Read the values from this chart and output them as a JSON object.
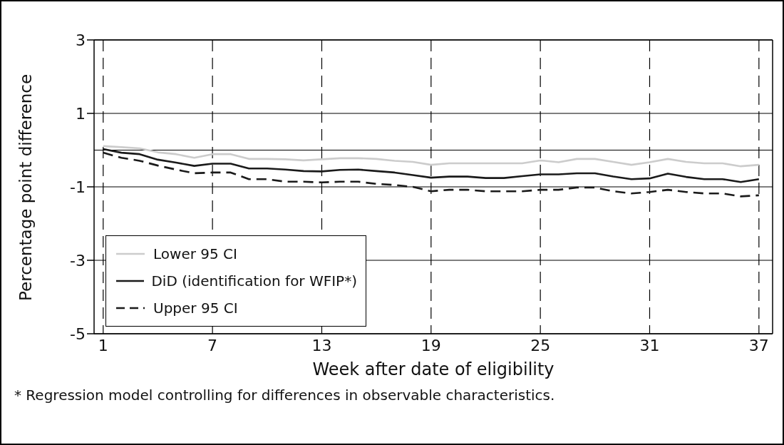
{
  "chart_data": {
    "type": "line",
    "xlabel": "Week after date of eligibility",
    "ylabel": "Percentage point difference",
    "annotations": [
      "* Regression model controlling for differences in observable characteristics."
    ],
    "x": [
      1,
      2,
      3,
      4,
      5,
      6,
      7,
      8,
      9,
      10,
      11,
      12,
      13,
      14,
      15,
      16,
      17,
      18,
      19,
      20,
      21,
      22,
      23,
      24,
      25,
      26,
      27,
      28,
      29,
      30,
      31,
      32,
      33,
      34,
      35,
      36,
      37
    ],
    "xlim": [
      0.5,
      37.75
    ],
    "xticks": [
      1,
      7,
      13,
      19,
      25,
      31,
      37
    ],
    "ylim": [
      -5,
      3
    ],
    "yticks": [
      -5,
      -3,
      -1,
      1,
      3
    ],
    "grid": true,
    "legend": "bottom left",
    "marker": "none",
    "ref_lines": [
      {
        "axis": "y",
        "value": 0,
        "color": "#000000"
      }
    ],
    "series": [
      {
        "name": "Lower 95 CI",
        "color": "#cccccc",
        "line_style": "solid",
        "values": [
          0.11,
          0.08,
          0.05,
          -0.06,
          -0.11,
          -0.21,
          -0.11,
          -0.11,
          -0.24,
          -0.24,
          -0.25,
          -0.28,
          -0.25,
          -0.22,
          -0.22,
          -0.24,
          -0.29,
          -0.32,
          -0.4,
          -0.36,
          -0.36,
          -0.36,
          -0.36,
          -0.36,
          -0.28,
          -0.33,
          -0.24,
          -0.24,
          -0.32,
          -0.4,
          -0.33,
          -0.24,
          -0.32,
          -0.36,
          -0.36,
          -0.44,
          -0.4
        ]
      },
      {
        "name": "DiD (identification for WFIP*)",
        "color": "#1a1a1a",
        "line_style": "solid",
        "values": [
          0.03,
          -0.07,
          -0.11,
          -0.26,
          -0.34,
          -0.43,
          -0.37,
          -0.37,
          -0.5,
          -0.5,
          -0.53,
          -0.57,
          -0.58,
          -0.54,
          -0.53,
          -0.57,
          -0.61,
          -0.68,
          -0.75,
          -0.72,
          -0.72,
          -0.76,
          -0.76,
          -0.71,
          -0.66,
          -0.66,
          -0.63,
          -0.63,
          -0.72,
          -0.79,
          -0.77,
          -0.64,
          -0.73,
          -0.79,
          -0.79,
          -0.87,
          -0.79
        ]
      },
      {
        "name": "Upper 95 CI",
        "color": "#1a1a1a",
        "line_style": "dashed",
        "values": [
          -0.07,
          -0.21,
          -0.29,
          -0.42,
          -0.53,
          -0.63,
          -0.61,
          -0.61,
          -0.79,
          -0.79,
          -0.86,
          -0.86,
          -0.88,
          -0.86,
          -0.86,
          -0.92,
          -0.95,
          -1.0,
          -1.12,
          -1.08,
          -1.08,
          -1.12,
          -1.12,
          -1.12,
          -1.08,
          -1.08,
          -1.02,
          -1.02,
          -1.12,
          -1.18,
          -1.14,
          -1.08,
          -1.14,
          -1.18,
          -1.18,
          -1.26,
          -1.23
        ]
      }
    ]
  }
}
